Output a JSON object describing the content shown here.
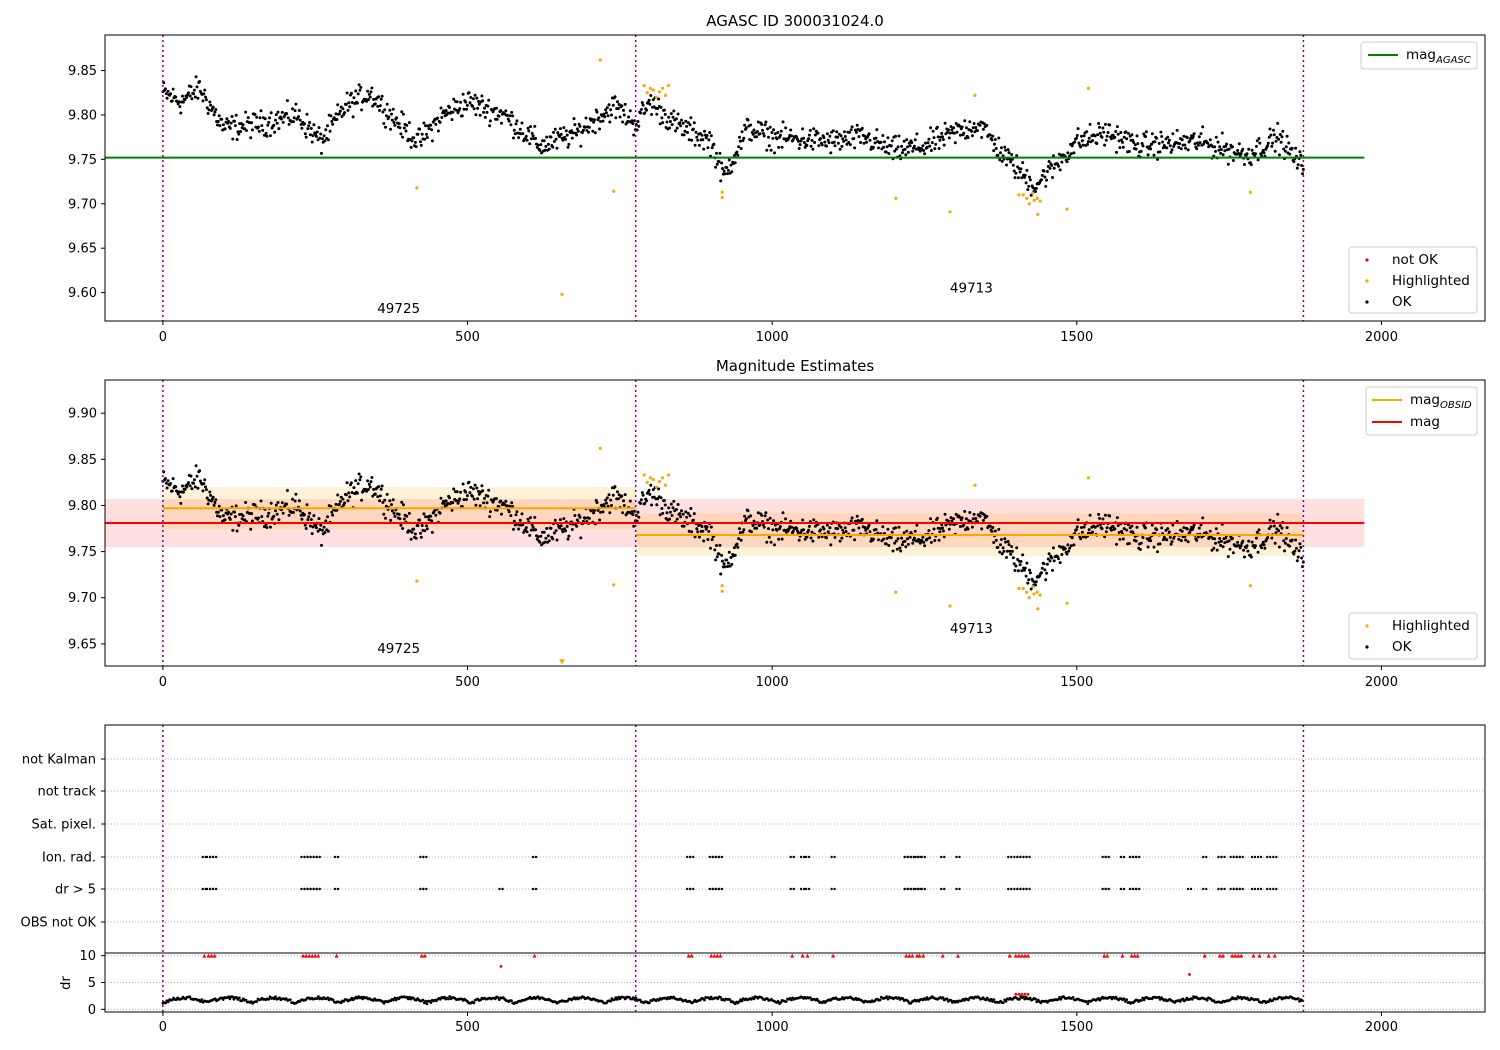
{
  "chart_data": [
    {
      "type": "scatter",
      "title": "AGASC ID 300031024.0",
      "xlim": [
        -95,
        2170
      ],
      "ylim": [
        9.568,
        9.89
      ],
      "xticks": [
        0,
        500,
        1000,
        1500,
        2000
      ],
      "yticks": [
        9.6,
        9.65,
        9.7,
        9.75,
        9.8,
        9.85
      ],
      "ytick_labels": [
        "9.60",
        "9.65",
        "9.70",
        "9.75",
        "9.80",
        "9.85"
      ],
      "obs_boundaries": [
        0,
        776,
        1872
      ],
      "obs_labels": [
        {
          "text": "49725",
          "x": 387,
          "y": 9.577
        },
        {
          "text": "49713",
          "x": 1327,
          "y": 9.6
        },
        {
          "text": "",
          "x": 0,
          "y": 0
        }
      ],
      "reference_lines": [
        {
          "name": "mag_AGASC",
          "y": 9.752,
          "x": [
            -95,
            1972
          ],
          "color": "#008000"
        }
      ],
      "legend_top": {
        "position": "upper right",
        "entries": [
          {
            "label_main": "mag",
            "label_sub": "AGASC",
            "color": "#008000",
            "kind": "line"
          }
        ]
      },
      "legend_bottom": {
        "position": "lower right",
        "entries": [
          {
            "label": "not OK",
            "color": "#ff0000",
            "kind": "dot"
          },
          {
            "label": "Highlighted",
            "color": "#ffa500",
            "kind": "dot"
          },
          {
            "label": "OK",
            "color": "#000000",
            "kind": "dot"
          }
        ]
      },
      "series": [
        {
          "name": "OK",
          "color": "#000000",
          "trend": [
            [
              0,
              9.825
            ],
            [
              30,
              9.815
            ],
            [
              60,
              9.83
            ],
            [
              100,
              9.785
            ],
            [
              160,
              9.79
            ],
            [
              220,
              9.8
            ],
            [
              260,
              9.77
            ],
            [
              300,
              9.81
            ],
            [
              340,
              9.825
            ],
            [
              380,
              9.795
            ],
            [
              420,
              9.77
            ],
            [
              460,
              9.8
            ],
            [
              500,
              9.815
            ],
            [
              560,
              9.8
            ],
            [
              620,
              9.765
            ],
            [
              680,
              9.78
            ],
            [
              740,
              9.81
            ],
            [
              776,
              9.79
            ],
            [
              800,
              9.815
            ],
            [
              840,
              9.79
            ],
            [
              900,
              9.77
            ],
            [
              920,
              9.73
            ],
            [
              960,
              9.785
            ],
            [
              1000,
              9.775
            ],
            [
              1100,
              9.77
            ],
            [
              1150,
              9.775
            ],
            [
              1200,
              9.76
            ],
            [
              1250,
              9.765
            ],
            [
              1300,
              9.78
            ],
            [
              1340,
              9.79
            ],
            [
              1380,
              9.755
            ],
            [
              1430,
              9.72
            ],
            [
              1460,
              9.74
            ],
            [
              1500,
              9.77
            ],
            [
              1550,
              9.78
            ],
            [
              1600,
              9.765
            ],
            [
              1700,
              9.77
            ],
            [
              1780,
              9.755
            ],
            [
              1830,
              9.775
            ],
            [
              1872,
              9.74
            ]
          ],
          "scatter_spread": 0.015
        },
        {
          "name": "Highlighted",
          "color": "#ffa500",
          "points": [
            [
              417,
              9.718
            ],
            [
              655,
              9.598
            ],
            [
              718,
              9.862
            ],
            [
              740,
              9.714
            ],
            [
              790,
              9.833
            ],
            [
              795,
              9.825
            ],
            [
              800,
              9.83
            ],
            [
              805,
              9.828
            ],
            [
              810,
              9.82
            ],
            [
              815,
              9.826
            ],
            [
              820,
              9.83
            ],
            [
              825,
              9.822
            ],
            [
              830,
              9.833
            ],
            [
              918,
              9.707
            ],
            [
              918,
              9.713
            ],
            [
              1203,
              9.706
            ],
            [
              1292,
              9.691
            ],
            [
              1333,
              9.822
            ],
            [
              1405,
              9.71
            ],
            [
              1412,
              9.71
            ],
            [
              1418,
              9.706
            ],
            [
              1422,
              9.7
            ],
            [
              1428,
              9.712
            ],
            [
              1430,
              9.704
            ],
            [
              1435,
              9.706
            ],
            [
              1440,
              9.703
            ],
            [
              1436,
              9.688
            ],
            [
              1484,
              9.694
            ],
            [
              1519,
              9.83
            ],
            [
              1785,
              9.713
            ]
          ]
        }
      ]
    },
    {
      "type": "scatter",
      "title": "Magnitude Estimates",
      "xlim": [
        -95,
        2170
      ],
      "ylim": [
        9.626,
        9.936
      ],
      "xticks": [
        0,
        500,
        1000,
        1500,
        2000
      ],
      "yticks": [
        9.65,
        9.7,
        9.75,
        9.8,
        9.85,
        9.9
      ],
      "ytick_labels": [
        "9.65",
        "9.70",
        "9.75",
        "9.80",
        "9.85",
        "9.90"
      ],
      "obs_boundaries": [
        0,
        776,
        1872
      ],
      "obs_labels": [
        {
          "text": "49725",
          "x": 387,
          "y": 9.64
        },
        {
          "text": "49713",
          "x": 1327,
          "y": 9.662
        }
      ],
      "reference_lines": [
        {
          "name": "mag",
          "y": 9.781,
          "x": [
            -95,
            1972
          ],
          "color": "#ff0000",
          "band": [
            9.755,
            9.807
          ],
          "band_color": "rgba(255,0,0,0.12)"
        },
        {
          "name": "mag_OBSID",
          "y": 9.797,
          "x": [
            0,
            776
          ],
          "color": "#ffa500",
          "band": [
            9.774,
            9.82
          ],
          "band_color": "rgba(255,165,0,0.15)"
        },
        {
          "name": "mag_OBSID",
          "y": 9.768,
          "x": [
            776,
            1872
          ],
          "color": "#ffa500",
          "band": [
            9.745,
            9.792
          ],
          "band_color": "rgba(255,165,0,0.15)"
        }
      ],
      "legend_top": {
        "position": "upper right",
        "entries": [
          {
            "label_main": "mag",
            "label_sub": "OBSID",
            "color": "#ffa500",
            "kind": "line"
          },
          {
            "label_main": "mag",
            "label_sub": "",
            "color": "#ff0000",
            "kind": "line"
          }
        ]
      },
      "legend_bottom": {
        "position": "lower right",
        "entries": [
          {
            "label": "Highlighted",
            "color": "#ffa500",
            "kind": "dot"
          },
          {
            "label": "OK",
            "color": "#000000",
            "kind": "dot"
          }
        ]
      },
      "series": [
        {
          "name": "OK",
          "color": "#000000",
          "same_as_panel": 0
        },
        {
          "name": "Highlighted",
          "color": "#ffa500",
          "same_as_panel": 0,
          "clip_marker": [
            655,
            9.63
          ]
        }
      ]
    },
    {
      "type": "scatter",
      "title": "",
      "xlim": [
        -95,
        2170
      ],
      "xticks": [
        0,
        500,
        1000,
        1500,
        2000
      ],
      "obs_boundaries": [
        0,
        776,
        1872
      ],
      "flag_rows": [
        "not Kalman",
        "not track",
        "Sat. pixel.",
        "Ion. rad.",
        "dr > 5",
        "OBS not OK"
      ],
      "flag_points": {
        "Ion. rad.": [
          68,
          75,
          80,
          85,
          230,
          235,
          240,
          245,
          250,
          255,
          285,
          425,
          430,
          610,
          863,
          868,
          900,
          905,
          910,
          915,
          1033,
          1050,
          1058,
          1100,
          1220,
          1225,
          1230,
          1238,
          1242,
          1248,
          1280,
          1305,
          1390,
          1400,
          1405,
          1410,
          1415,
          1420,
          1545,
          1550,
          1575,
          1590,
          1595,
          1600,
          1710,
          1735,
          1740,
          1755,
          1760,
          1765,
          1770,
          1790,
          1800,
          1815,
          1825
        ],
        "dr > 5": [
          68,
          75,
          80,
          85,
          230,
          235,
          240,
          245,
          250,
          255,
          285,
          425,
          430,
          555,
          610,
          863,
          868,
          900,
          905,
          910,
          915,
          1033,
          1050,
          1058,
          1100,
          1220,
          1225,
          1230,
          1238,
          1242,
          1248,
          1280,
          1305,
          1390,
          1400,
          1405,
          1410,
          1415,
          1420,
          1545,
          1550,
          1575,
          1590,
          1595,
          1600,
          1685,
          1710,
          1735,
          1740,
          1755,
          1760,
          1765,
          1770,
          1790,
          1800,
          1815,
          1825
        ]
      },
      "dr": {
        "ylabel": "dr",
        "ylim": [
          -0.5,
          10.5
        ],
        "yticks": [
          0,
          5,
          10
        ],
        "outliers": [
          [
            555,
            8
          ],
          [
            1685,
            6.5
          ],
          [
            1400,
            2.8
          ],
          [
            1405,
            2.8
          ],
          [
            1410,
            2.8
          ],
          [
            1415,
            2.8
          ],
          [
            1420,
            2.8
          ]
        ],
        "capped_at_10": [
          68,
          75,
          80,
          85,
          230,
          235,
          240,
          245,
          250,
          255,
          285,
          425,
          430,
          610,
          863,
          868,
          900,
          905,
          910,
          915,
          1033,
          1050,
          1058,
          1100,
          1220,
          1225,
          1230,
          1238,
          1242,
          1248,
          1280,
          1305,
          1390,
          1400,
          1405,
          1410,
          1415,
          1420,
          1545,
          1550,
          1575,
          1590,
          1595,
          1600,
          1710,
          1735,
          1740,
          1755,
          1760,
          1765,
          1770,
          1790,
          1800,
          1815,
          1825
        ]
      }
    }
  ]
}
